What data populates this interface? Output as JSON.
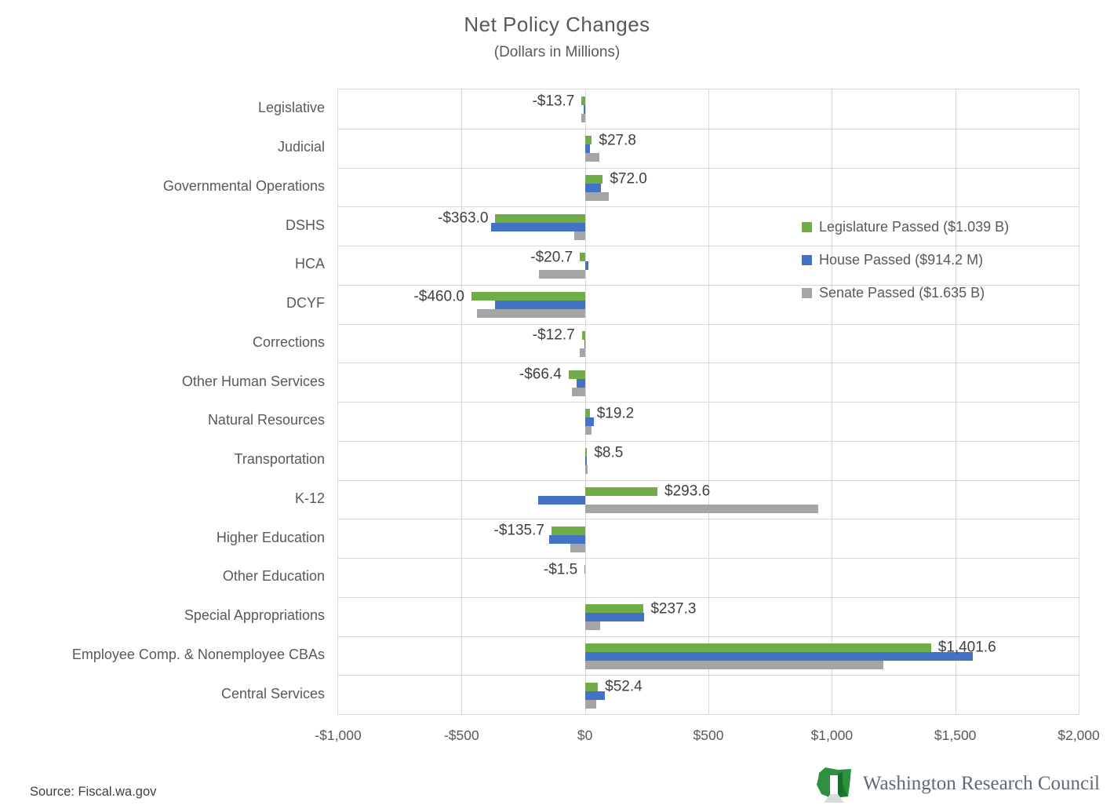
{
  "title": "Net Policy Changes",
  "subtitle": "(Dollars in Millions)",
  "source_text": "Source: Fiscal.wa.gov",
  "branding": {
    "name": "Washington Research Council"
  },
  "chart_data": {
    "type": "bar",
    "orientation": "horizontal",
    "title": "Net Policy Changes",
    "subtitle": "(Dollars in Millions)",
    "xlabel": "Dollars in Millions",
    "ylabel": "",
    "grid": true,
    "legend_position": "right-inside",
    "xlim": [
      -1000,
      2000
    ],
    "x_ticks": [
      "-$1,000",
      "-$500",
      "$0",
      "$500",
      "$1,000",
      "$1,500",
      "$2,000"
    ],
    "x_tick_values": [
      -1000,
      -500,
      0,
      500,
      1000,
      1500,
      2000
    ],
    "categories": [
      "Legislative",
      "Judicial",
      "Governmental Operations",
      "DSHS",
      "HCA",
      "DCYF",
      "Corrections",
      "Other Human Services",
      "Natural Resources",
      "Transportation",
      "K-12",
      "Higher Education",
      "Other Education",
      "Special Appropriations",
      "Employee Comp. & Nonemployee CBAs",
      "Central Services"
    ],
    "series": [
      {
        "name": "Legislature Passed ($1.039 B)",
        "color": "#70AD47",
        "values": [
          -13.7,
          27.8,
          72.0,
          -363.0,
          -20.7,
          -460.0,
          -12.7,
          -66.4,
          19.2,
          8.5,
          293.6,
          -135.7,
          -1.5,
          237.3,
          1401.6,
          52.4
        ]
      },
      {
        "name": "House Passed ($914.2 M)",
        "color": "#4472C4",
        "values": [
          -5,
          19,
          65,
          -380,
          15,
          -365,
          -3,
          -34,
          35,
          8,
          -190,
          -145,
          0,
          240,
          1570,
          80
        ]
      },
      {
        "name": "Senate Passed ($1.635 B)",
        "color": "#A5A5A5",
        "values": [
          -15,
          57,
          95,
          -44,
          -186,
          -436,
          -20,
          -53,
          25,
          12,
          945,
          -60,
          0,
          62,
          1210,
          45
        ]
      }
    ],
    "data_labels": [
      "-$13.7",
      "$27.8",
      "$72.0",
      "-$363.0",
      "-$20.7",
      "-$460.0",
      "-$12.7",
      "-$66.4",
      "$19.2",
      "$8.5",
      "$293.6",
      "-$135.7",
      "-$1.5",
      "$237.3",
      "$1,401.6",
      "$52.4"
    ],
    "data_labels_series": "Legislature Passed ($1.039 B)"
  }
}
